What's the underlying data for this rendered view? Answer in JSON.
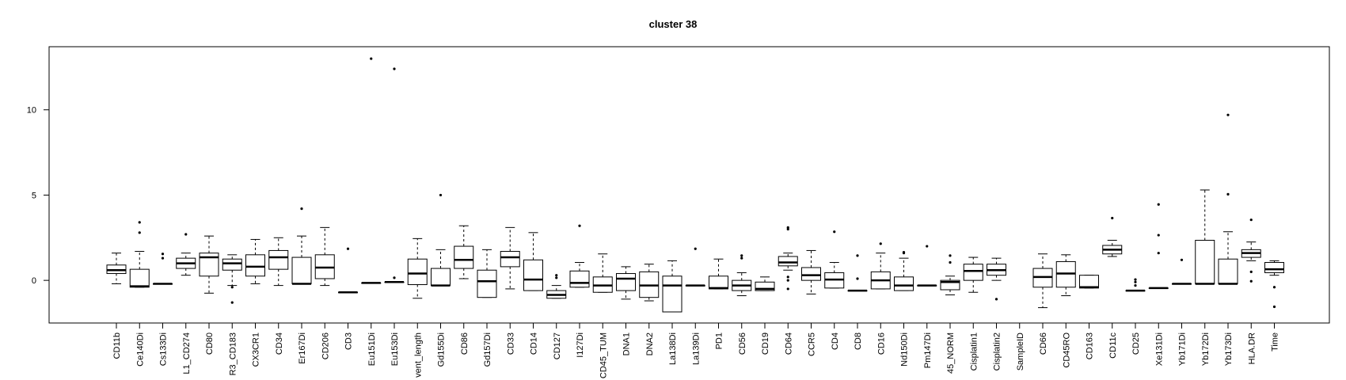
{
  "chart_data": {
    "type": "boxplot",
    "title": "cluster 38",
    "xlabel": "",
    "ylabel": "",
    "ylim": [
      -2.5,
      13.7
    ],
    "y_ticks": [
      0,
      5,
      10
    ],
    "grid": false,
    "categories": [
      "CD11b",
      "Ce140Di",
      "Cs133Di",
      "L1_CD274",
      "CD80",
      "R3_CD183",
      "CX3CR1",
      "CD34",
      "Er167Di",
      "CD206",
      "CD3",
      "Eu151Di",
      "Eu153Di",
      "vent_length",
      "Gd155Di",
      "CD86",
      "Gd157Di",
      "CD33",
      "CD14",
      "CD127",
      "I127Di",
      "CD45_TUM",
      "DNA1",
      "DNA2",
      "La138Di",
      "La139Di",
      "PD1",
      "CD56",
      "CD19",
      "CD64",
      "CCR5",
      "CD4",
      "CD8",
      "CD16",
      "Nd150Di",
      "Pm147Di",
      "45_NORM",
      "Cisplatin1",
      "Cisplatin2",
      "SampleID",
      "CD66",
      "CD45RO",
      "CD163",
      "CD11c",
      "CD25",
      "Xe131Di",
      "Yb171Di",
      "Yb172Di",
      "Yb173Di",
      "HLA.DR",
      "Time"
    ],
    "boxes": [
      {
        "min": -0.2,
        "q1": 0.4,
        "median": 0.6,
        "q3": 0.9,
        "max": 1.6,
        "outliers": []
      },
      {
        "min": -0.4,
        "q1": -0.4,
        "median": -0.35,
        "q3": 0.65,
        "max": 1.7,
        "outliers": [
          2.8,
          3.4
        ]
      },
      {
        "min": -0.2,
        "q1": -0.2,
        "median": -0.2,
        "q3": -0.2,
        "max": -0.2,
        "outliers": [
          1.3,
          1.55
        ]
      },
      {
        "min": 0.3,
        "q1": 0.7,
        "median": 1.0,
        "q3": 1.3,
        "max": 1.6,
        "outliers": [
          2.7
        ]
      },
      {
        "min": -0.75,
        "q1": 0.25,
        "median": 1.35,
        "q3": 1.6,
        "max": 2.6,
        "outliers": []
      },
      {
        "min": -0.3,
        "q1": 0.6,
        "median": 1.0,
        "q3": 1.25,
        "max": 1.5,
        "outliers": [
          -0.4,
          -1.3
        ]
      },
      {
        "min": -0.2,
        "q1": 0.25,
        "median": 0.8,
        "q3": 1.5,
        "max": 2.4,
        "outliers": []
      },
      {
        "min": -0.3,
        "q1": 0.65,
        "median": 1.35,
        "q3": 1.75,
        "max": 2.5,
        "outliers": []
      },
      {
        "min": -0.2,
        "q1": -0.2,
        "median": -0.2,
        "q3": 1.35,
        "max": 2.6,
        "outliers": [
          4.2
        ]
      },
      {
        "min": -0.3,
        "q1": 0.1,
        "median": 0.75,
        "q3": 1.5,
        "max": 3.1,
        "outliers": []
      },
      {
        "min": -0.7,
        "q1": -0.7,
        "median": -0.7,
        "q3": -0.7,
        "max": -0.7,
        "outliers": [
          1.85
        ]
      },
      {
        "min": -0.15,
        "q1": -0.15,
        "median": -0.15,
        "q3": -0.15,
        "max": -0.15,
        "outliers": [
          13.0
        ]
      },
      {
        "min": -0.1,
        "q1": -0.1,
        "median": -0.1,
        "q3": -0.1,
        "max": -0.1,
        "outliers": [
          0.15,
          12.4
        ]
      },
      {
        "min": -1.05,
        "q1": -0.25,
        "median": 0.4,
        "q3": 1.25,
        "max": 2.45,
        "outliers": []
      },
      {
        "min": -0.3,
        "q1": -0.3,
        "median": -0.3,
        "q3": 0.7,
        "max": 1.8,
        "outliers": [
          5.0
        ]
      },
      {
        "min": 0.1,
        "q1": 0.7,
        "median": 1.2,
        "q3": 2.0,
        "max": 3.2,
        "outliers": []
      },
      {
        "min": -1.0,
        "q1": -1.0,
        "median": -0.05,
        "q3": 0.6,
        "max": 1.8,
        "outliers": []
      },
      {
        "min": -0.5,
        "q1": 0.8,
        "median": 1.35,
        "q3": 1.7,
        "max": 3.1,
        "outliers": []
      },
      {
        "min": -0.6,
        "q1": -0.6,
        "median": 0.05,
        "q3": 1.2,
        "max": 2.8,
        "outliers": []
      },
      {
        "min": -1.05,
        "q1": -1.05,
        "median": -0.85,
        "q3": -0.6,
        "max": -0.3,
        "outliers": [
          0.15,
          0.3
        ]
      },
      {
        "min": -0.4,
        "q1": -0.4,
        "median": -0.15,
        "q3": 0.55,
        "max": 1.05,
        "outliers": [
          3.2
        ]
      },
      {
        "min": -0.7,
        "q1": -0.7,
        "median": -0.3,
        "q3": 0.2,
        "max": 1.55,
        "outliers": []
      },
      {
        "min": -1.1,
        "q1": -0.6,
        "median": 0.1,
        "q3": 0.4,
        "max": 0.8,
        "outliers": []
      },
      {
        "min": -1.2,
        "q1": -1.0,
        "median": -0.3,
        "q3": 0.5,
        "max": 0.95,
        "outliers": []
      },
      {
        "min": -1.85,
        "q1": -1.85,
        "median": -0.3,
        "q3": 0.25,
        "max": 1.15,
        "outliers": []
      },
      {
        "min": -0.3,
        "q1": -0.3,
        "median": -0.3,
        "q3": -0.3,
        "max": -0.3,
        "outliers": [
          1.85
        ]
      },
      {
        "min": -0.5,
        "q1": -0.5,
        "median": -0.45,
        "q3": 0.25,
        "max": 1.25,
        "outliers": []
      },
      {
        "min": -0.9,
        "q1": -0.6,
        "median": -0.3,
        "q3": 0.0,
        "max": 0.45,
        "outliers": [
          1.3,
          1.45
        ]
      },
      {
        "min": -0.6,
        "q1": -0.6,
        "median": -0.5,
        "q3": -0.1,
        "max": 0.2,
        "outliers": []
      },
      {
        "min": 0.6,
        "q1": 0.85,
        "median": 1.05,
        "q3": 1.4,
        "max": 1.6,
        "outliers": [
          3.0,
          3.1,
          0.2,
          0.0,
          -0.5
        ]
      },
      {
        "min": -0.8,
        "q1": 0.0,
        "median": 0.3,
        "q3": 0.75,
        "max": 1.75,
        "outliers": []
      },
      {
        "min": -0.45,
        "q1": -0.45,
        "median": 0.05,
        "q3": 0.45,
        "max": 1.05,
        "outliers": [
          2.85
        ]
      },
      {
        "min": -0.6,
        "q1": -0.6,
        "median": -0.6,
        "q3": -0.6,
        "max": -0.6,
        "outliers": [
          0.1,
          1.45
        ]
      },
      {
        "min": -0.5,
        "q1": -0.5,
        "median": 0.0,
        "q3": 0.5,
        "max": 1.6,
        "outliers": [
          2.15
        ]
      },
      {
        "min": -0.6,
        "q1": -0.6,
        "median": -0.3,
        "q3": 0.2,
        "max": 1.3,
        "outliers": [
          1.6,
          1.65
        ]
      },
      {
        "min": -0.3,
        "q1": -0.3,
        "median": -0.3,
        "q3": -0.3,
        "max": -0.3,
        "outliers": [
          2.0
        ]
      },
      {
        "min": -0.85,
        "q1": -0.55,
        "median": -0.1,
        "q3": 0.0,
        "max": 0.25,
        "outliers": [
          1.05,
          1.45
        ]
      },
      {
        "min": -0.7,
        "q1": 0.0,
        "median": 0.55,
        "q3": 0.95,
        "max": 1.35,
        "outliers": []
      },
      {
        "min": 0.0,
        "q1": 0.3,
        "median": 0.6,
        "q3": 0.95,
        "max": 1.3,
        "outliers": [
          -1.1
        ]
      },
      null,
      {
        "min": -1.6,
        "q1": -0.4,
        "median": 0.2,
        "q3": 0.7,
        "max": 1.55,
        "outliers": []
      },
      {
        "min": -0.9,
        "q1": -0.4,
        "median": 0.4,
        "q3": 1.1,
        "max": 1.5,
        "outliers": []
      },
      {
        "min": -0.45,
        "q1": -0.45,
        "median": -0.4,
        "q3": 0.3,
        "max": 0.3,
        "outliers": []
      },
      {
        "min": 1.4,
        "q1": 1.55,
        "median": 1.8,
        "q3": 2.05,
        "max": 2.35,
        "outliers": [
          3.65
        ]
      },
      {
        "min": -0.6,
        "q1": -0.6,
        "median": -0.6,
        "q3": -0.6,
        "max": -0.6,
        "outliers": [
          -0.3,
          -0.1,
          0.05
        ]
      },
      {
        "min": -0.45,
        "q1": -0.45,
        "median": -0.45,
        "q3": -0.45,
        "max": -0.45,
        "outliers": [
          1.6,
          2.65,
          4.45
        ]
      },
      {
        "min": -0.2,
        "q1": -0.2,
        "median": -0.2,
        "q3": -0.2,
        "max": -0.2,
        "outliers": [
          1.2
        ]
      },
      {
        "min": -0.2,
        "q1": -0.2,
        "median": -0.2,
        "q3": 2.35,
        "max": 5.3,
        "outliers": []
      },
      {
        "min": -0.2,
        "q1": -0.2,
        "median": -0.2,
        "q3": 1.25,
        "max": 2.85,
        "outliers": [
          5.05,
          9.7
        ]
      },
      {
        "min": 1.15,
        "q1": 1.35,
        "median": 1.6,
        "q3": 1.8,
        "max": 2.25,
        "outliers": [
          3.55,
          0.5,
          -0.05
        ]
      },
      {
        "min": 0.3,
        "q1": 0.45,
        "median": 0.65,
        "q3": 1.05,
        "max": 1.15,
        "outliers": [
          -0.4,
          -1.55
        ]
      }
    ]
  }
}
